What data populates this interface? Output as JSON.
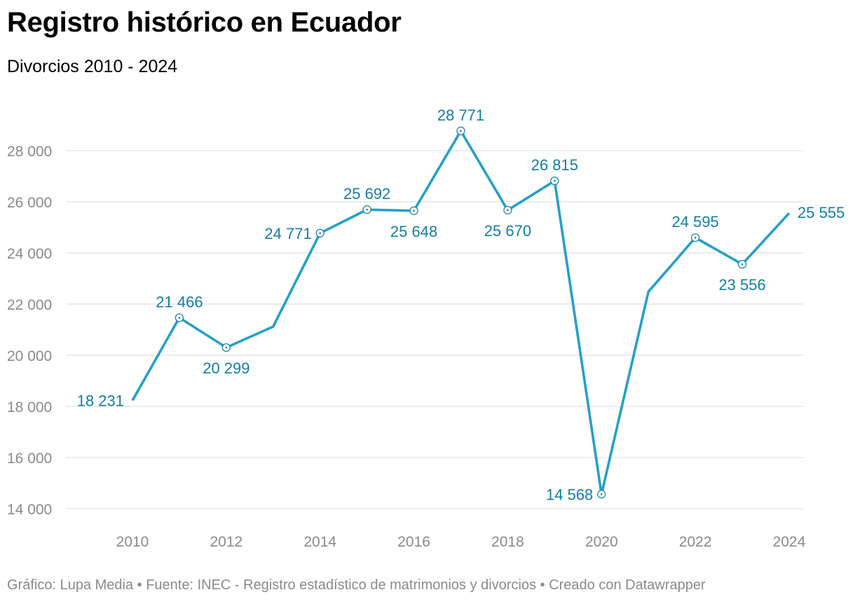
{
  "header": {
    "title": "Registro histórico en Ecuador",
    "subtitle": "Divorcios 2010 - 2024"
  },
  "footer": {
    "text": "Gráfico: Lupa Media • Fuente: INEC - Registro estadístico de matrimonios y divorcios • Creado con Datawrapper"
  },
  "colors": {
    "line": "#25a0c9",
    "label": "#137da4",
    "grid": "#e2e2e2",
    "axis_text": "#8a8a8a"
  },
  "chart_data": {
    "type": "line",
    "title": "Registro histórico en Ecuador",
    "subtitle": "Divorcios 2010 - 2024",
    "xlabel": "",
    "ylabel": "",
    "grid": true,
    "xlim": [
      2009,
      2024
    ],
    "ylim": [
      14000,
      29000
    ],
    "x_ticks": [
      2010,
      2012,
      2014,
      2016,
      2018,
      2020,
      2022,
      2024
    ],
    "x_tick_labels": [
      "2010",
      "2012",
      "2014",
      "2016",
      "2018",
      "2020",
      "2022",
      "2024"
    ],
    "y_ticks": [
      14000,
      16000,
      18000,
      20000,
      22000,
      24000,
      26000,
      28000
    ],
    "y_tick_labels": [
      "14 000",
      "16 000",
      "18 000",
      "20 000",
      "22 000",
      "24 000",
      "26 000",
      "28 000"
    ],
    "series": [
      {
        "name": "Divorcios",
        "x": [
          2010,
          2011,
          2012,
          2013,
          2014,
          2015,
          2016,
          2017,
          2018,
          2019,
          2020,
          2021,
          2022,
          2023,
          2024
        ],
        "values": [
          18231,
          21466,
          20299,
          21120,
          24771,
          25692,
          25648,
          28771,
          25670,
          26815,
          14568,
          22480,
          24595,
          23556,
          25555
        ]
      }
    ],
    "annotations": [
      {
        "year": 2010,
        "text": "18 231",
        "position": "left",
        "marker": false
      },
      {
        "year": 2011,
        "text": "21 466",
        "position": "above",
        "marker": true
      },
      {
        "year": 2012,
        "text": "20 299",
        "position": "below",
        "marker": true
      },
      {
        "year": 2014,
        "text": "24 771",
        "position": "left",
        "marker": true
      },
      {
        "year": 2015,
        "text": "25 692",
        "position": "above",
        "marker": true
      },
      {
        "year": 2016,
        "text": "25 648",
        "position": "below",
        "marker": true
      },
      {
        "year": 2017,
        "text": "28 771",
        "position": "above",
        "marker": true
      },
      {
        "year": 2018,
        "text": "25 670",
        "position": "below",
        "marker": true
      },
      {
        "year": 2019,
        "text": "26 815",
        "position": "above",
        "marker": true
      },
      {
        "year": 2020,
        "text": "14 568",
        "position": "left",
        "marker": true
      },
      {
        "year": 2022,
        "text": "24 595",
        "position": "above",
        "marker": true
      },
      {
        "year": 2023,
        "text": "23 556",
        "position": "below",
        "marker": true
      },
      {
        "year": 2024,
        "text": "25 555",
        "position": "right",
        "marker": false
      }
    ]
  }
}
